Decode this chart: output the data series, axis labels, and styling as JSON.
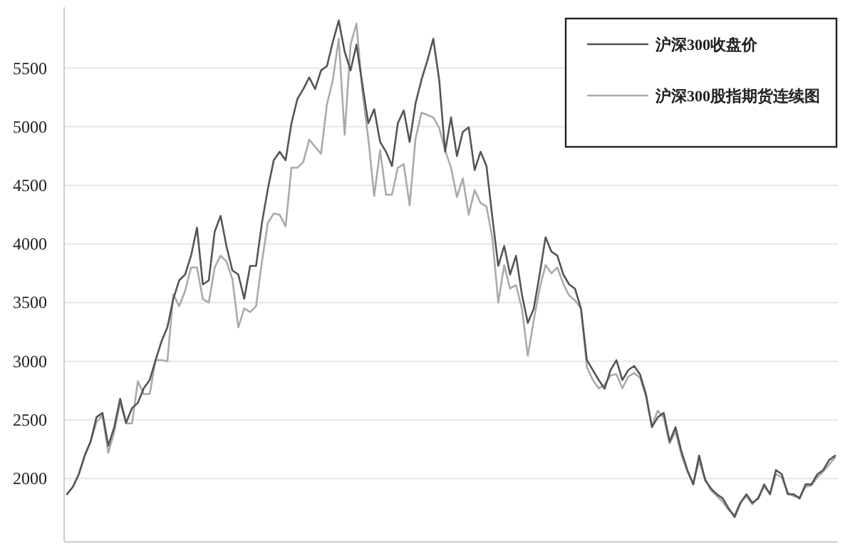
{
  "chart_data": {
    "type": "line",
    "categories": [
      null,
      null,
      null,
      null,
      null,
      null,
      null,
      null,
      null,
      null,
      null,
      null,
      null,
      null,
      null,
      null,
      null,
      null,
      null,
      null,
      null,
      null,
      null,
      null,
      null,
      null,
      null,
      null,
      null,
      null,
      null,
      null,
      null,
      null,
      null,
      null,
      null,
      null,
      null,
      null,
      null,
      null,
      null,
      null,
      null,
      null,
      null,
      null,
      null,
      null,
      null,
      null,
      null,
      null,
      null,
      null,
      null,
      null,
      null,
      null,
      null,
      null,
      null,
      null,
      null,
      null,
      null,
      null,
      null,
      null,
      null,
      null,
      null,
      null,
      null,
      null,
      null,
      null,
      null,
      null,
      null,
      null,
      null,
      null,
      null,
      null,
      null,
      null,
      null,
      null,
      null,
      null,
      null,
      null,
      null,
      null,
      null,
      null,
      null,
      null,
      null,
      null,
      null,
      null,
      null,
      null,
      null,
      null,
      null,
      null,
      null,
      null,
      null,
      null,
      null,
      null,
      null,
      null,
      null,
      null,
      null,
      null,
      null,
      null,
      null,
      null,
      null,
      null,
      null,
      null,
      null
    ],
    "series": [
      {
        "name": "沪深300收盘价",
        "color": "#555555",
        "values": [
          1866,
          1930,
          2036,
          2195,
          2316,
          2523,
          2560,
          2280,
          2438,
          2680,
          2475,
          2600,
          2645,
          2770,
          2840,
          3010,
          3170,
          3290,
          3533,
          3690,
          3740,
          3900,
          4140,
          3655,
          3690,
          4105,
          4240,
          3980,
          3775,
          3740,
          3533,
          3813,
          3813,
          4180,
          4470,
          4714,
          4787,
          4714,
          5030,
          5237,
          5322,
          5420,
          5322,
          5480,
          5517,
          5724,
          5906,
          5640,
          5480,
          5700,
          5360,
          5030,
          5150,
          4870,
          4787,
          4665,
          5030,
          5140,
          4870,
          5200,
          5400,
          5565,
          5750,
          5400,
          4787,
          5080,
          4750,
          4956,
          4995,
          4630,
          4787,
          4665,
          4227,
          3813,
          3983,
          3740,
          3900,
          3570,
          3326,
          3448,
          3740,
          4057,
          3935,
          3900,
          3740,
          3655,
          3618,
          3448,
          3010,
          2925,
          2840,
          2766,
          2925,
          3010,
          2840,
          2925,
          2960,
          2888,
          2718,
          2438,
          2523,
          2560,
          2316,
          2438,
          2231,
          2073,
          1950,
          2195,
          1988,
          1915,
          1866,
          1830,
          1745,
          1672,
          1793,
          1866,
          1793,
          1830,
          1950,
          1866,
          2073,
          2036,
          1866,
          1866,
          1830,
          1950,
          1950,
          2036,
          2073,
          2158,
          2195
        ]
      },
      {
        "name": "沪深300股指期货连续图",
        "color": "#aaaaaa",
        "values": [
          1866,
          1930,
          2036,
          2195,
          2316,
          2480,
          2540,
          2220,
          2400,
          2650,
          2470,
          2470,
          2830,
          2720,
          2720,
          3010,
          3010,
          3000,
          3570,
          3470,
          3600,
          3800,
          3800,
          3530,
          3500,
          3800,
          3900,
          3850,
          3700,
          3290,
          3450,
          3420,
          3470,
          3850,
          4180,
          4260,
          4250,
          4150,
          4650,
          4650,
          4700,
          4890,
          4830,
          4770,
          5190,
          5400,
          5750,
          4930,
          5700,
          5880,
          5300,
          4900,
          4410,
          4800,
          4420,
          4420,
          4650,
          4680,
          4330,
          4900,
          5120,
          5100,
          5080,
          4990,
          4800,
          4650,
          4400,
          4560,
          4250,
          4460,
          4350,
          4320,
          4050,
          3500,
          3820,
          3620,
          3650,
          3450,
          3046,
          3350,
          3620,
          3820,
          3750,
          3800,
          3660,
          3560,
          3520,
          3450,
          2950,
          2840,
          2770,
          2800,
          2880,
          2890,
          2770,
          2870,
          2900,
          2860,
          2700,
          2450,
          2580,
          2520,
          2300,
          2400,
          2200,
          2060,
          1960,
          2150,
          2000,
          1900,
          1850,
          1800,
          1730,
          1690,
          1800,
          1850,
          1780,
          1840,
          1930,
          1870,
          2040,
          2010,
          1880,
          1850,
          1840,
          1930,
          1940,
          2010,
          2060,
          2120,
          2180
        ]
      }
    ],
    "ylim": [
      1460,
      6020
    ],
    "yticks": [
      2000,
      2500,
      3000,
      3500,
      4000,
      4500,
      5000,
      5500
    ],
    "grid": "y",
    "legend": "top right"
  }
}
